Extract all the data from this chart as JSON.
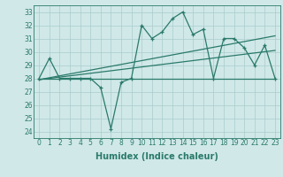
{
  "main_line_x": [
    0,
    1,
    2,
    3,
    4,
    5,
    6,
    7,
    8,
    9,
    10,
    11,
    12,
    13,
    14,
    15,
    16,
    17,
    18,
    19,
    20,
    21,
    22,
    23
  ],
  "main_line_y": [
    28,
    29.5,
    28,
    28,
    28,
    28,
    27.3,
    24.2,
    27.7,
    28,
    32.0,
    31.0,
    31.5,
    32.5,
    33.0,
    31.3,
    31.7,
    28,
    31.0,
    31.0,
    30.3,
    29.0,
    30.5,
    28
  ],
  "trend_line1_x": [
    0,
    23
  ],
  "trend_line1_y": [
    28.0,
    28.0
  ],
  "trend_line2_x": [
    0,
    23
  ],
  "trend_line2_y": [
    27.9,
    31.2
  ],
  "trend_line3_x": [
    0,
    23
  ],
  "trend_line3_y": [
    27.9,
    30.1
  ],
  "line_color": "#2a7a6a",
  "background_color": "#d0e8e8",
  "grid_color": "#aacccc",
  "xlabel": "Humidex (Indice chaleur)",
  "xlim": [
    -0.5,
    23.5
  ],
  "ylim": [
    23.5,
    33.5
  ],
  "yticks": [
    24,
    25,
    26,
    27,
    28,
    29,
    30,
    31,
    32,
    33
  ],
  "xticks": [
    0,
    1,
    2,
    3,
    4,
    5,
    6,
    7,
    8,
    9,
    10,
    11,
    12,
    13,
    14,
    15,
    16,
    17,
    18,
    19,
    20,
    21,
    22,
    23
  ],
  "xlabel_fontsize": 7,
  "tick_fontsize": 5.5
}
